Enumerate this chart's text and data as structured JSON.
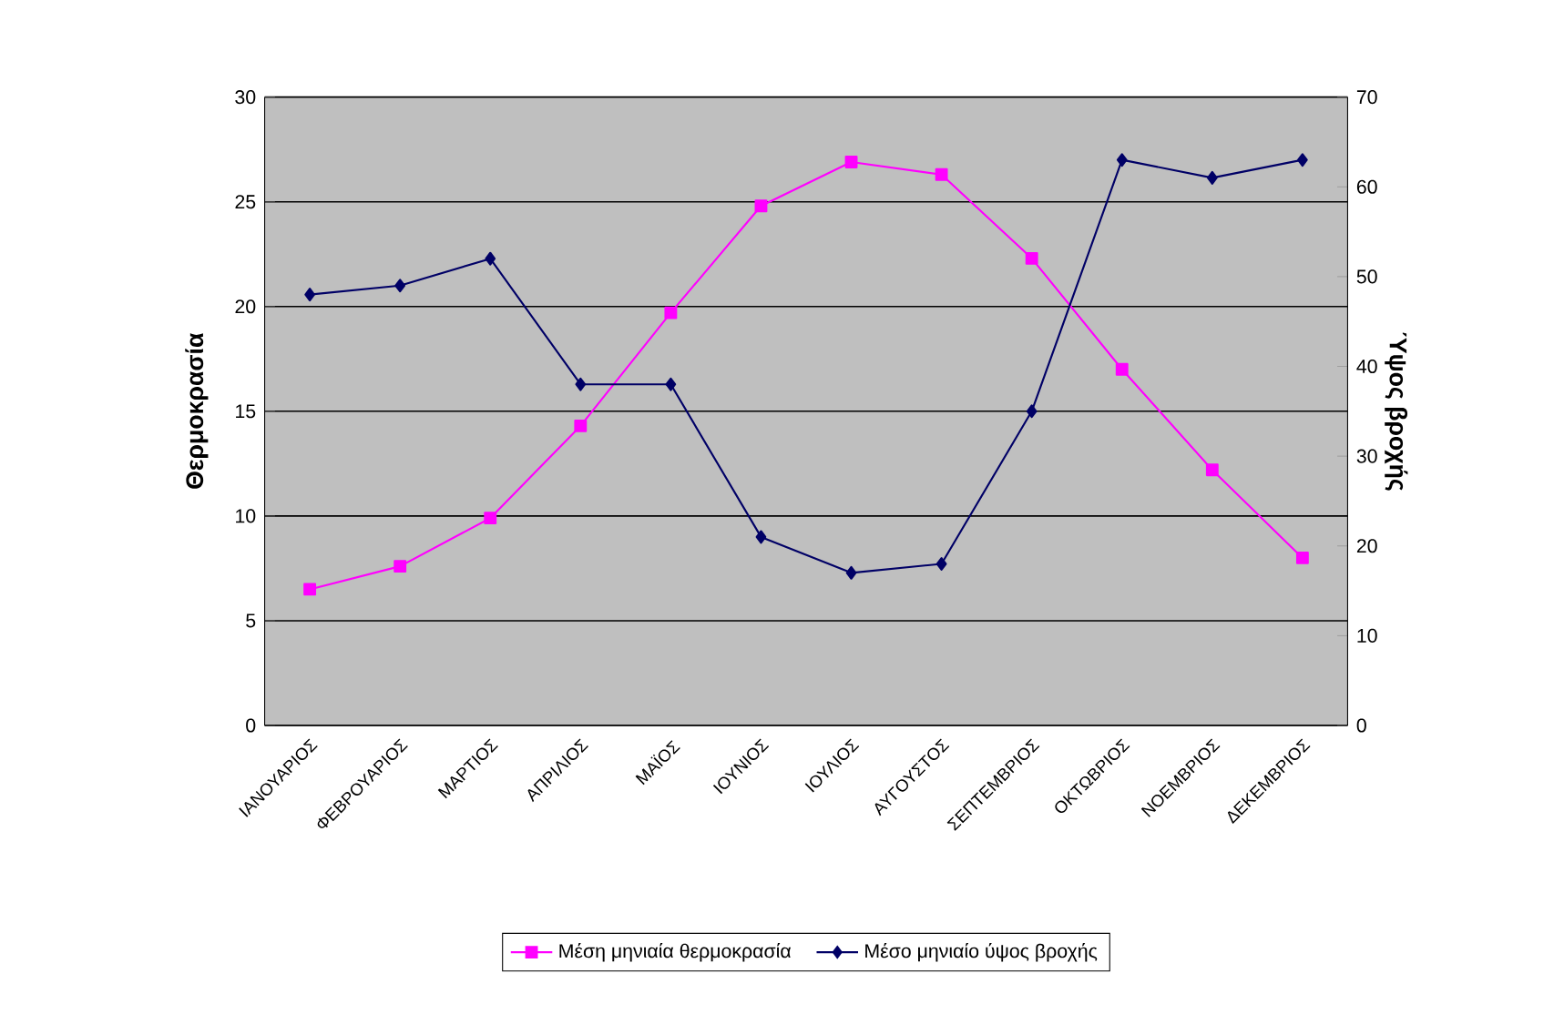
{
  "chart_data": {
    "type": "line",
    "categories": [
      "ΙΑΝΟΥΑΡΙΟΣ",
      "ΦΕΒΡΟΥΑΡΙΟΣ",
      "ΜΑΡΤΙΟΣ",
      "ΑΠΡΙΛΙΟΣ",
      "ΜΑΪΟΣ",
      "ΙΟΥΝΙΟΣ",
      "ΙΟΥΛΙΟΣ",
      "ΑΥΓΟΥΣΤΟΣ",
      "ΣΕΠΤΕΜΒΡΙΟΣ",
      "ΟΚΤΩΒΡΙΟΣ",
      "ΝΟΕΜΒΡΙΟΣ",
      "ΔΕΚΕΜΒΡΙΟΣ"
    ],
    "series": [
      {
        "name": "Μέση μηνιαία θερμοκρασία",
        "color": "#ff00ff",
        "marker": "square",
        "values": [
          6.5,
          7.6,
          9.9,
          14.3,
          19.7,
          24.8,
          26.9,
          26.3,
          22.3,
          17.0,
          12.2,
          8.0
        ]
      },
      {
        "name": "Μέσο μηνιαίο ύψος βροχής",
        "color": "#000066",
        "marker": "diamond",
        "axis": "y2",
        "values": [
          48,
          49,
          52,
          38,
          38,
          21,
          17,
          18,
          35,
          63,
          61,
          63
        ]
      }
    ],
    "ylabel": "Θερμοκρασία",
    "y2label": "Ύψος βροχής",
    "ylim": [
      0,
      30
    ],
    "yticks": [
      0,
      5,
      10,
      15,
      20,
      25,
      30
    ],
    "y2lim": [
      0,
      70
    ],
    "y2ticks": [
      0,
      10,
      20,
      30,
      40,
      50,
      60,
      70
    ],
    "grid": "y",
    "legend": "bottom"
  }
}
